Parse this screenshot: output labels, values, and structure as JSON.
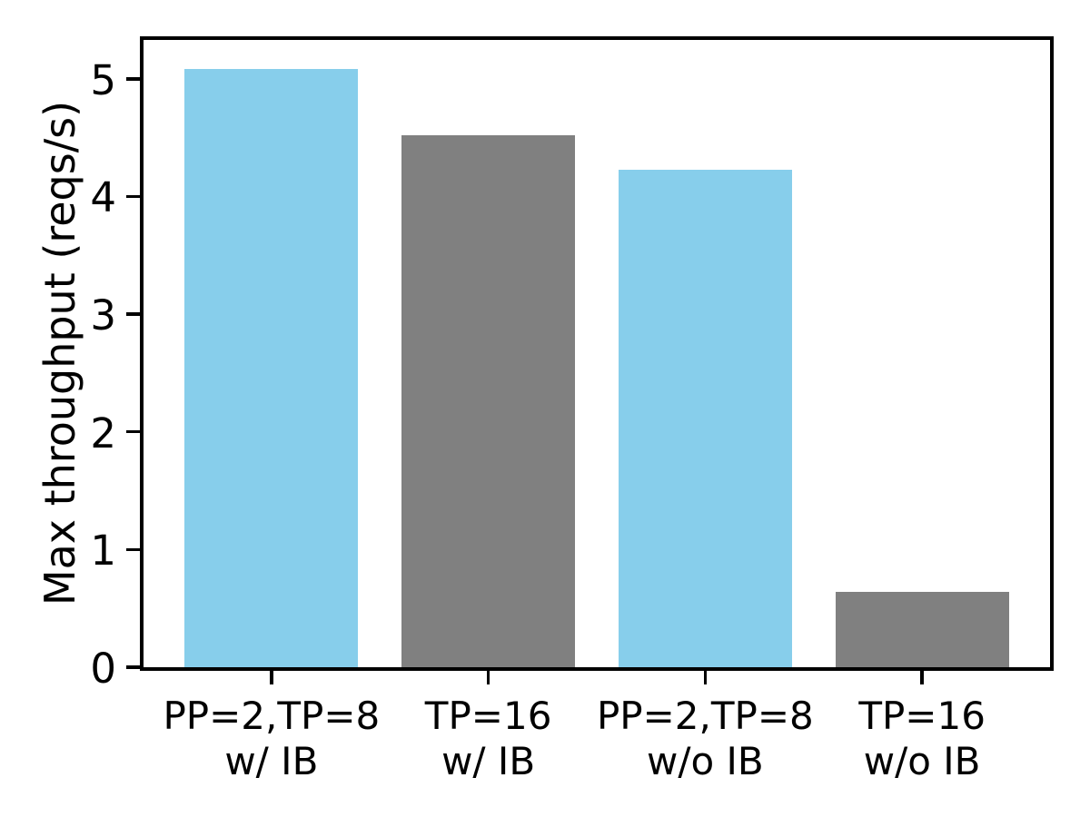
{
  "figure": {
    "background": "#ffffff",
    "text_color": "#000000",
    "axis_color": "#000000"
  },
  "chart_data": {
    "type": "bar",
    "title": "",
    "xlabel": "",
    "ylabel": "Max throughput (reqs/s)",
    "categories": [
      {
        "line1": "PP=2,TP=8",
        "line2": "w/ IB"
      },
      {
        "line1": "TP=16",
        "line2": "w/ IB"
      },
      {
        "line1": "PP=2,TP=8",
        "line2": "w/o IB"
      },
      {
        "line1": "TP=16",
        "line2": "w/o IB"
      }
    ],
    "values": [
      5.08,
      4.52,
      4.23,
      0.64
    ],
    "bar_colors": [
      "#87CEEB",
      "#808080",
      "#87CEEB",
      "#808080"
    ],
    "yticks": [
      0,
      1,
      2,
      3,
      4,
      5
    ],
    "ylim": [
      0,
      5.33
    ],
    "bar_width_fraction": 0.8,
    "grid": false,
    "legend": null
  }
}
